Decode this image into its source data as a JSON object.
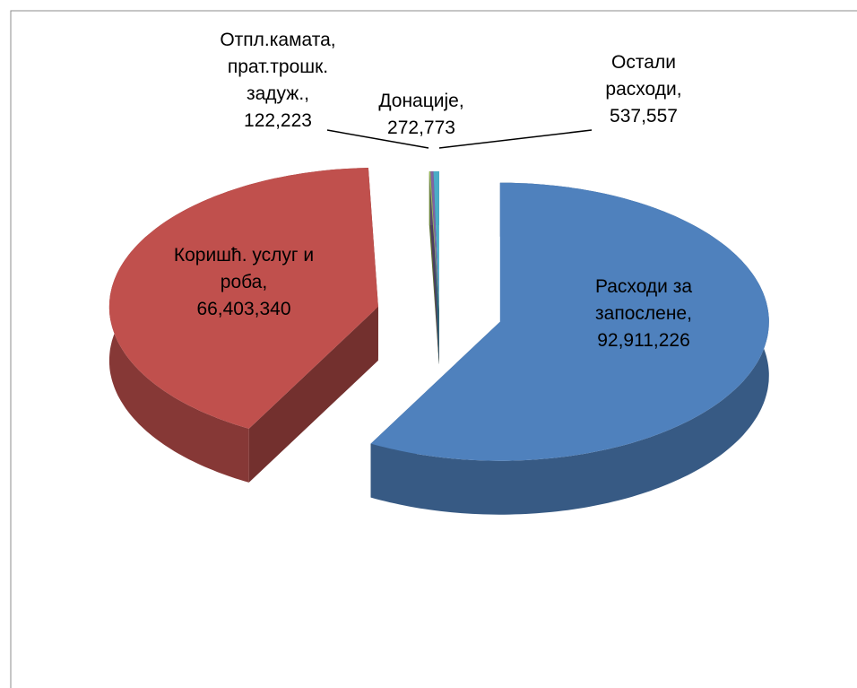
{
  "chart_data": {
    "type": "pie3d",
    "categories": [
      "Расходи за запослене",
      "Коришћ. услуг и роба",
      "Отпл.камата, прат.трошк. задуж.",
      "Донације",
      "Остали расходи"
    ],
    "values": [
      92911226,
      66403340,
      122223,
      272773,
      537557
    ],
    "value_labels": [
      "92,911,226",
      "66,403,340",
      "122,223",
      "272,773",
      "537,557"
    ],
    "label_separator": ",",
    "colors": [
      "#4f81bd",
      "#c0504d",
      "#9bbb59",
      "#8064a2",
      "#4bacc6"
    ]
  }
}
